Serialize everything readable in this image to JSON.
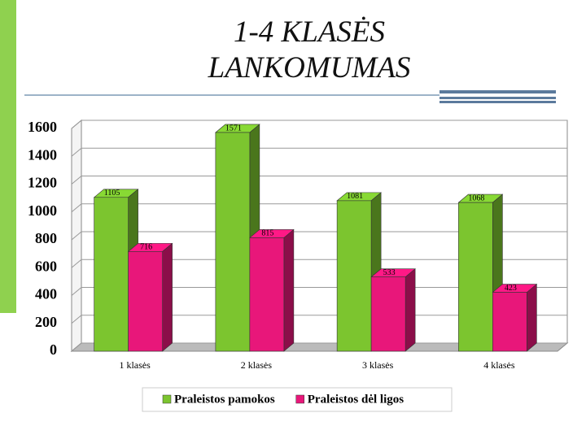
{
  "chart_data": {
    "type": "bar3d",
    "title": "1-4 KLASĖS LANKOMUMAS",
    "categories": [
      "1 klasės",
      "2 klasės",
      "3 klasės",
      "4 klasės"
    ],
    "series": [
      {
        "name": "Praleistos pamokos",
        "color": "#7cc52f",
        "values": [
          1105,
          1571,
          1081,
          1068
        ]
      },
      {
        "name": "Praleistos dėl ligos",
        "color": "#e8177a",
        "values": [
          716,
          815,
          533,
          423
        ]
      }
    ],
    "ylim": [
      0,
      1600
    ],
    "yticks": [
      0,
      200,
      400,
      600,
      800,
      1000,
      1200,
      1400,
      1600
    ],
    "grid": true,
    "legend": "bottom"
  }
}
